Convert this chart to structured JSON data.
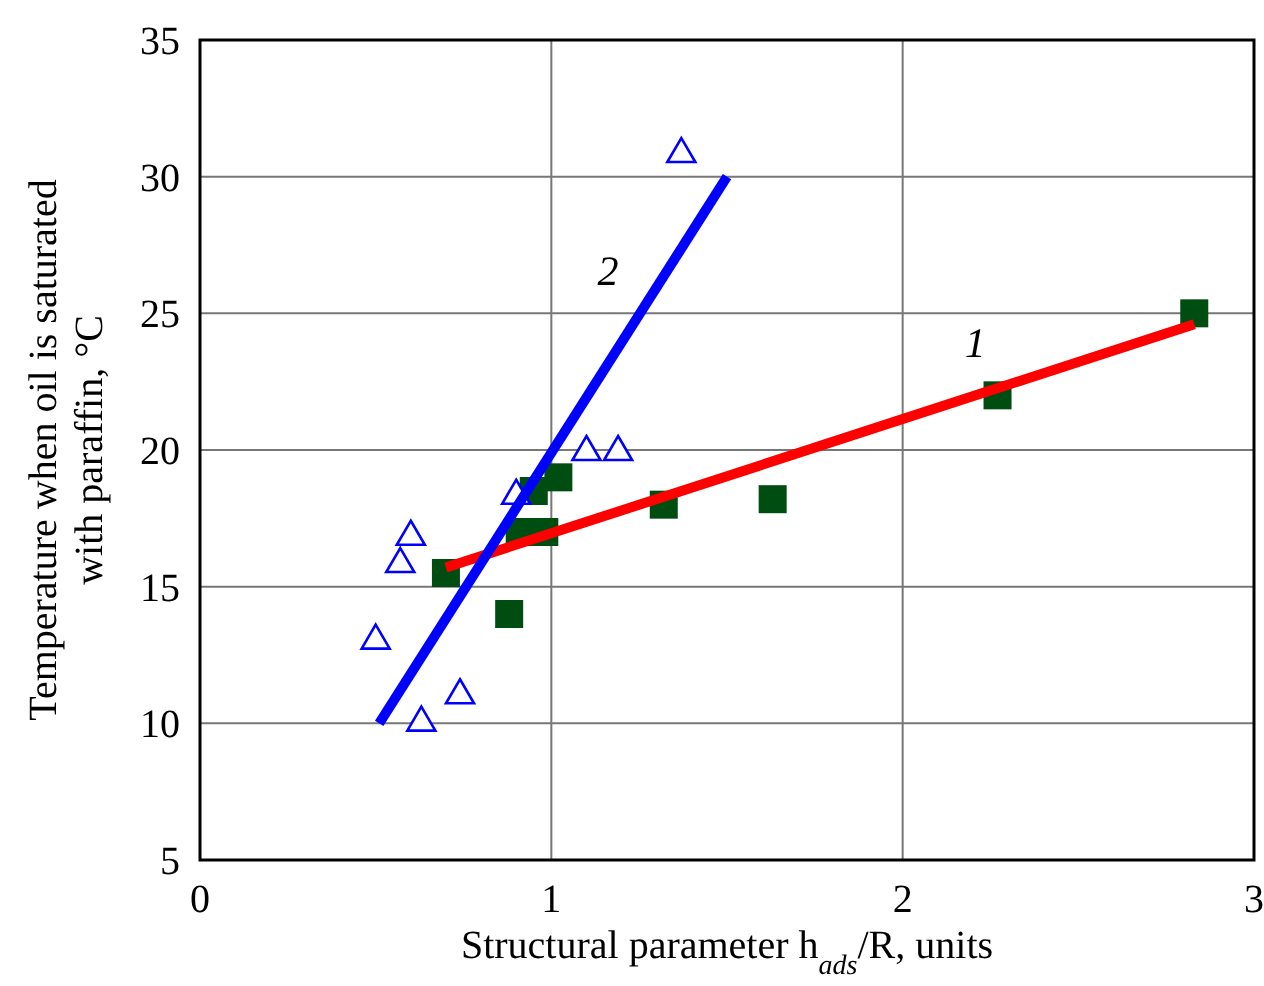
{
  "chart_data": {
    "type": "scatter",
    "xlabel": "Structural parameter  h$_{ads}$/R, units",
    "ylabel": "Temperature when oil is saturated\nwith paraffin, °C",
    "xlim": [
      0,
      3
    ],
    "xticks": [
      0,
      1,
      2,
      3
    ],
    "ylim": [
      5,
      35
    ],
    "yticks": [
      5,
      10,
      15,
      20,
      25,
      30,
      35
    ],
    "grid": true,
    "series": [
      {
        "color": "#004d12",
        "marker": "square",
        "x": [
          0.7,
          0.88,
          0.95,
          1.02,
          0.91,
          0.98,
          1.32,
          1.63,
          2.27,
          2.83
        ],
        "values": [
          15.5,
          14.0,
          18.5,
          19.0,
          17.0,
          17.0,
          18.0,
          18.2,
          22.0,
          25.0
        ]
      },
      {
        "color": "#0000ff",
        "marker": "triangle",
        "x": [
          1.37,
          1.1,
          1.19,
          0.9,
          0.6,
          0.57,
          0.5,
          0.74,
          0.63
        ],
        "values": [
          30.9,
          20.0,
          20.0,
          18.4,
          16.9,
          15.9,
          13.1,
          11.1,
          10.1
        ]
      },
      {
        "type": "line",
        "name": "1",
        "color": "#ff0000",
        "x": [
          0.7,
          2.83
        ],
        "values": [
          15.7,
          24.6
        ]
      },
      {
        "type": "line",
        "name": "2",
        "color": "#0000ff",
        "x": [
          0.51,
          1.5
        ],
        "values": [
          10.0,
          30.0
        ]
      }
    ]
  }
}
